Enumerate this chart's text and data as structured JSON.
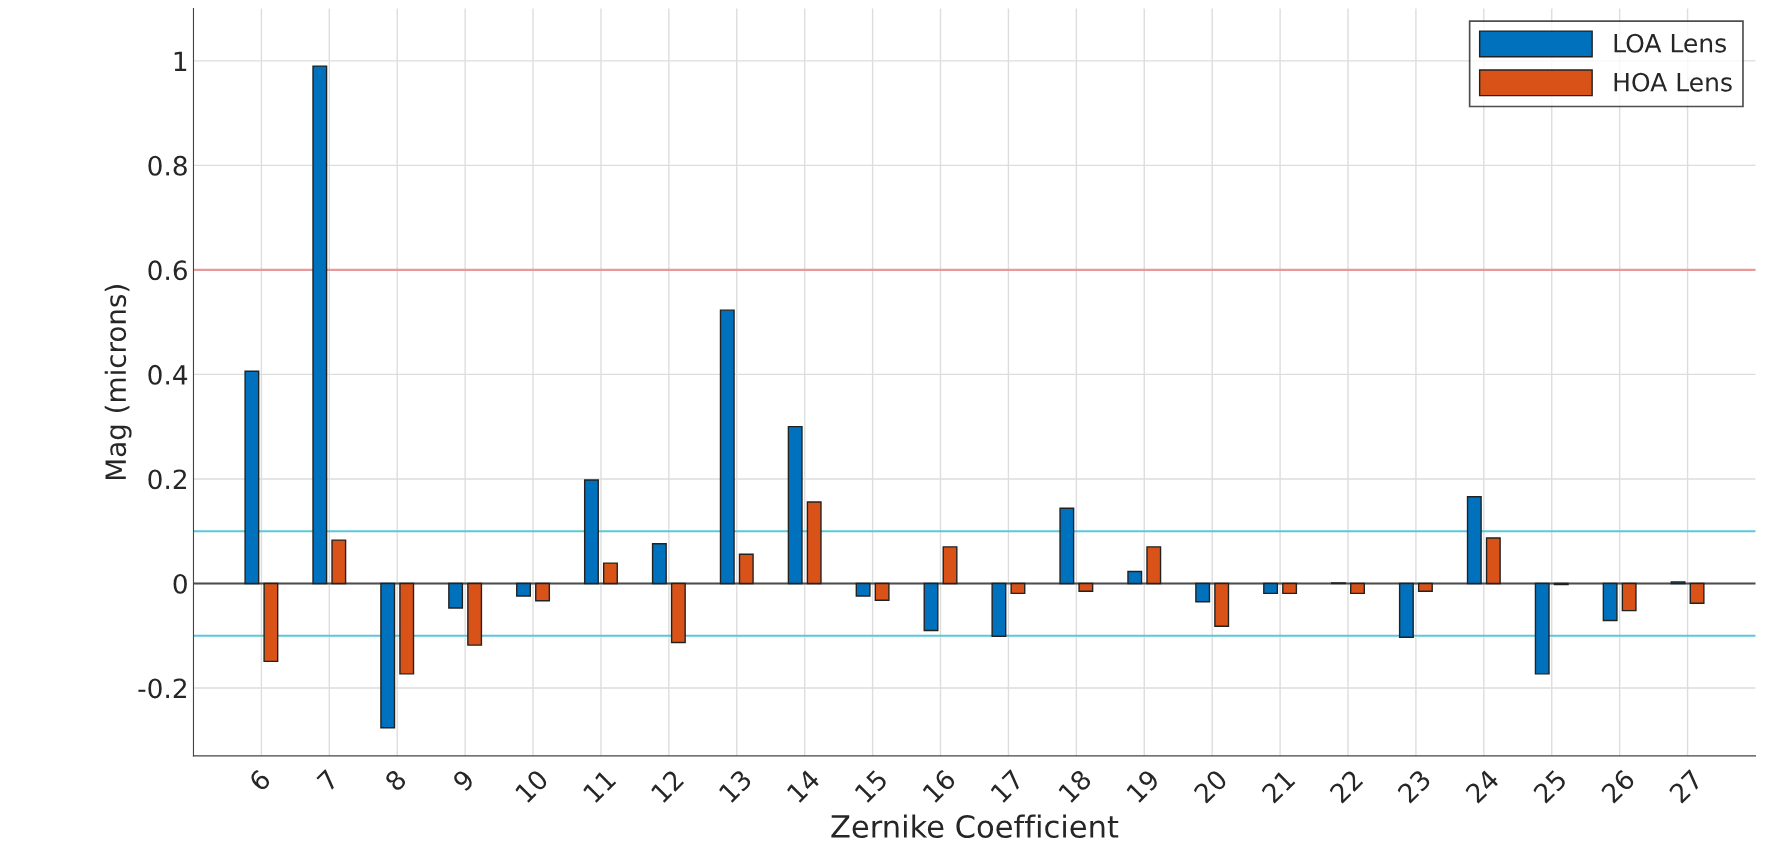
{
  "chart_data": {
    "type": "bar",
    "xlabel": "Zernike Coefficient",
    "ylabel": "Mag (microns)",
    "x": [
      6,
      7,
      8,
      9,
      10,
      11,
      12,
      13,
      14,
      15,
      16,
      17,
      18,
      19,
      20,
      21,
      22,
      23,
      24,
      25,
      26,
      27
    ],
    "series": [
      {
        "name": "LOA Lens",
        "color": "#0072bd",
        "values": [
          0.406,
          0.99,
          -0.276,
          -0.047,
          -0.024,
          0.198,
          0.076,
          0.523,
          0.3,
          -0.024,
          -0.09,
          -0.101,
          0.144,
          0.023,
          -0.035,
          -0.019,
          0.001,
          -0.103,
          0.166,
          -0.173,
          -0.071,
          0.003
        ]
      },
      {
        "name": "HOA Lens",
        "color": "#d95319",
        "values": [
          -0.149,
          0.083,
          -0.173,
          -0.118,
          -0.033,
          0.039,
          -0.113,
          0.056,
          0.156,
          -0.032,
          0.07,
          -0.019,
          -0.015,
          0.07,
          -0.082,
          -0.019,
          -0.019,
          -0.015,
          0.087,
          -0.002,
          -0.052,
          -0.038
        ]
      }
    ],
    "xlim": [
      5,
      28
    ],
    "xticks": [
      6,
      7,
      8,
      9,
      10,
      11,
      12,
      13,
      14,
      15,
      16,
      17,
      18,
      19,
      20,
      21,
      22,
      23,
      24,
      25,
      26,
      27
    ],
    "ylim": [
      -0.33,
      1.1
    ],
    "yticks": [
      -0.2,
      0,
      0.2,
      0.4,
      0.6,
      0.8,
      1
    ],
    "ref_lines": [
      {
        "axis": "y",
        "value": 0,
        "color": "#4d4d4d"
      },
      {
        "axis": "y",
        "value": 0.6,
        "color": "#e89a9a"
      },
      {
        "axis": "y",
        "value": 0.1,
        "color": "#5bc8d8"
      },
      {
        "axis": "y",
        "value": -0.1,
        "color": "#5bc8d8"
      }
    ],
    "grid": true,
    "legend": "top right"
  }
}
